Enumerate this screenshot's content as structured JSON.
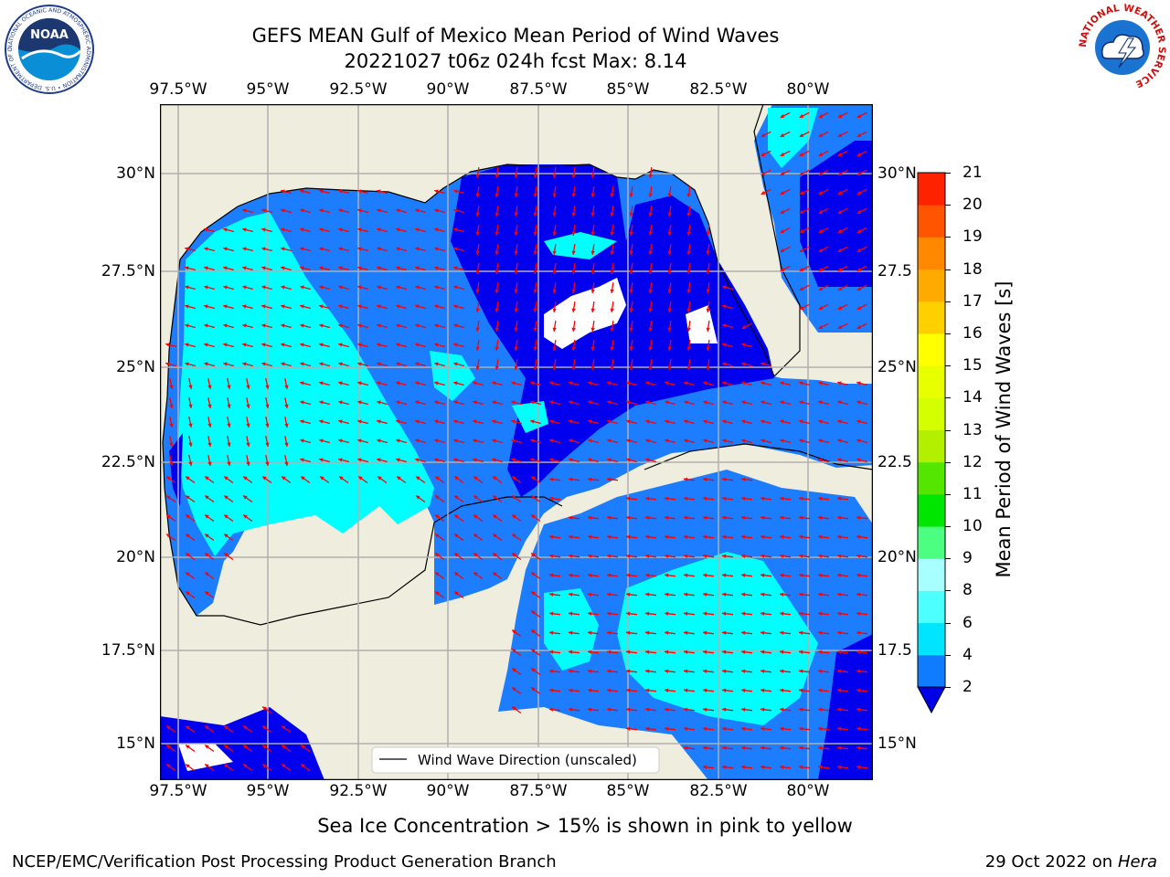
{
  "title": {
    "line1": "GEFS MEAN Gulf of Mexico Mean Period of Wind Waves",
    "line2": "20221027 t06z 024h fcst   Max: 8.14"
  },
  "logos": {
    "left": "NOAA",
    "left_ring": "NATIONAL OCEANIC AND ATMOSPHERIC ADMINISTRATION • U.S. DEPARTMENT OF COMMERCE",
    "right_ring": "NATIONAL WEATHER SERVICE"
  },
  "map": {
    "lon_labels": [
      "97.5°W",
      "95°W",
      "92.5°W",
      "90°W",
      "87.5°W",
      "85°W",
      "82.5°W",
      "80°W"
    ],
    "lat_labels_left": [
      "30°N",
      "27.5°N",
      "25°N",
      "22.5°N",
      "20°N",
      "17.5°N",
      "15°N"
    ],
    "lat_labels_right": [
      "30°N",
      "27.5",
      "25°N",
      "22.5",
      "20°N",
      "17.5",
      "15°N"
    ],
    "legend": "Wind Wave Direction (unscaled)",
    "colors": {
      "land": "#efedde",
      "ocean_2_4": "#1c7dff",
      "ocean_4_6": "#00ffff",
      "ocean_lt2": "#0000ee",
      "arrow": "#ff0000",
      "grid": "#b0b0b0"
    }
  },
  "colorbar": {
    "label": "Mean Period of Wind Waves [s]",
    "ticks": [
      "2",
      "4",
      "6",
      "8",
      "9",
      "10",
      "11",
      "12",
      "13",
      "14",
      "15",
      "16",
      "17",
      "18",
      "19",
      "20",
      "21"
    ],
    "colors": [
      "#0f7bff",
      "#00e5ff",
      "#4dffff",
      "#a8ffff",
      "#4dff80",
      "#00e600",
      "#55e600",
      "#b3f000",
      "#d4ff00",
      "#e8ff00",
      "#ffff00",
      "#ffd000",
      "#ffaa00",
      "#ff8800",
      "#ff5500",
      "#ff2200"
    ],
    "extend_color": "#0000e6"
  },
  "footer": {
    "note": "Sea Ice Concentration > 15% is shown in pink to yellow",
    "credit": "NCEP/EMC/Verification Post Processing Product Generation Branch",
    "date": "29 Oct 2022 on ",
    "machine": "Hera"
  }
}
